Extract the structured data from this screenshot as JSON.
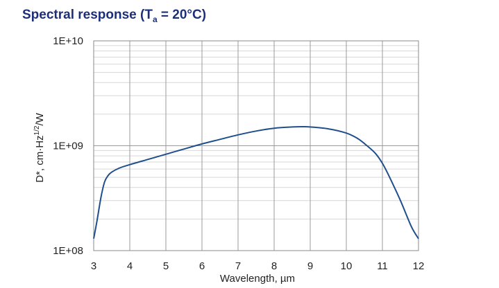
{
  "chart_data": {
    "type": "line",
    "title": "Spectral response (T",
    "title_sub": "a",
    "title_tail": " = 20°C)",
    "xlabel": "Wavelength, µm",
    "ylabel": "D*, cm·Hz1/2/W",
    "ylabel_parts": {
      "pre": "D*, cm·Hz",
      "sup": "1/2",
      "post": "/W"
    },
    "xlim": [
      3,
      12
    ],
    "ylim": [
      100000000,
      10000000000
    ],
    "yscale": "log",
    "grid": true,
    "x_ticks": [
      "3",
      "4",
      "5",
      "6",
      "7",
      "8",
      "9",
      "10",
      "11",
      "12"
    ],
    "y_ticks": [
      {
        "value": 100000000,
        "label": "1E+08"
      },
      {
        "value": 1000000000,
        "label": "1E+09"
      },
      {
        "value": 10000000000,
        "label": "1E+10"
      }
    ],
    "series": [
      {
        "color": "#1f4e8c",
        "x": [
          3.0,
          3.1,
          3.2,
          3.3,
          3.4,
          3.5,
          3.7,
          4.0,
          4.5,
          5.0,
          5.5,
          6.0,
          6.5,
          7.0,
          7.5,
          8.0,
          8.5,
          8.8,
          9.0,
          9.5,
          10.0,
          10.3,
          10.5,
          10.8,
          11.0,
          11.2,
          11.5,
          11.8,
          12.0
        ],
        "y": [
          130000000,
          200000000,
          320000000,
          450000000,
          520000000,
          560000000,
          610000000,
          660000000,
          740000000,
          830000000,
          930000000,
          1040000000,
          1150000000,
          1270000000,
          1380000000,
          1470000000,
          1510000000,
          1520000000,
          1510000000,
          1450000000,
          1320000000,
          1180000000,
          1050000000,
          850000000,
          680000000,
          500000000,
          300000000,
          170000000,
          130000000
        ]
      }
    ]
  }
}
